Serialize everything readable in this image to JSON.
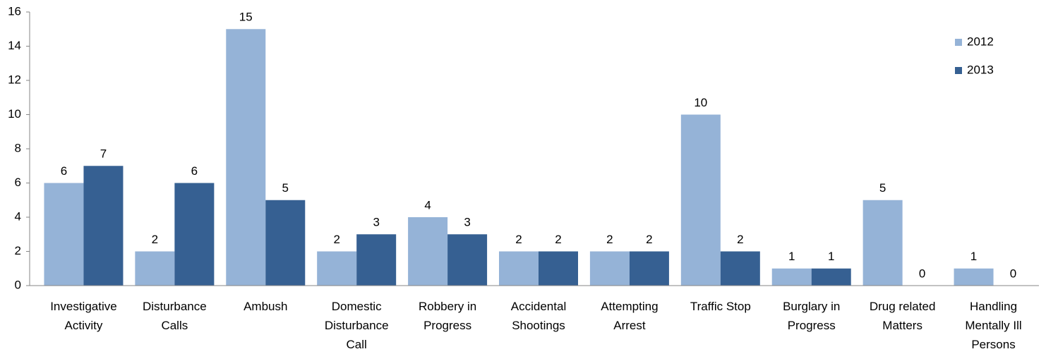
{
  "chart_data": {
    "type": "bar",
    "categories": [
      "Investigative Activity",
      "Disturbance Calls",
      "Ambush",
      "Domestic Disturbance Call",
      "Robbery in Progress",
      "Accidental Shootings",
      "Attempting Arrest",
      "Traffic Stop",
      "Burglary in Progress",
      "Drug related Matters",
      "Handling Mentally Ill Persons"
    ],
    "series": [
      {
        "name": "2012",
        "color": "#95b3d7",
        "values": [
          6,
          2,
          15,
          2,
          4,
          2,
          2,
          10,
          1,
          5,
          1
        ]
      },
      {
        "name": "2013",
        "color": "#366092",
        "values": [
          7,
          6,
          5,
          3,
          3,
          2,
          2,
          2,
          1,
          0,
          0
        ]
      }
    ],
    "ylim": [
      0,
      16
    ],
    "yticks": [
      0,
      2,
      4,
      6,
      8,
      10,
      12,
      14,
      16
    ],
    "grid": false,
    "legend": "top-right",
    "data_labels": true
  }
}
